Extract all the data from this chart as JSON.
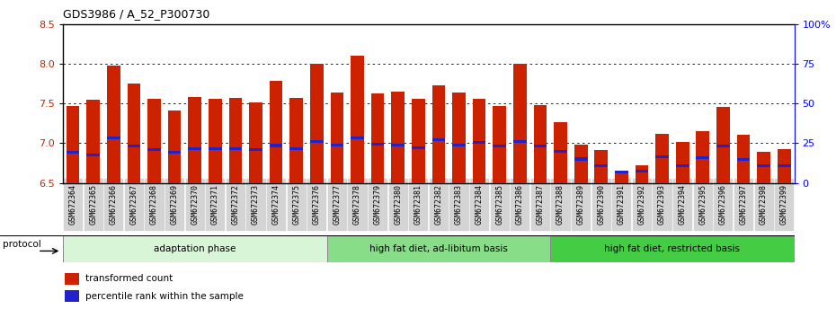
{
  "title": "GDS3986 / A_52_P300730",
  "samples": [
    "GSM672364",
    "GSM672365",
    "GSM672366",
    "GSM672367",
    "GSM672368",
    "GSM672369",
    "GSM672370",
    "GSM672371",
    "GSM672372",
    "GSM672373",
    "GSM672374",
    "GSM672375",
    "GSM672376",
    "GSM672377",
    "GSM672378",
    "GSM672379",
    "GSM672380",
    "GSM672381",
    "GSM672382",
    "GSM672383",
    "GSM672384",
    "GSM672385",
    "GSM672386",
    "GSM672387",
    "GSM672388",
    "GSM672389",
    "GSM672390",
    "GSM672391",
    "GSM672392",
    "GSM672393",
    "GSM672394",
    "GSM672395",
    "GSM672396",
    "GSM672397",
    "GSM672398",
    "GSM672399"
  ],
  "bar_values": [
    7.47,
    7.55,
    7.98,
    7.75,
    7.56,
    7.41,
    7.58,
    7.56,
    7.57,
    7.51,
    7.78,
    7.57,
    8.0,
    7.64,
    8.1,
    7.63,
    7.65,
    7.56,
    7.73,
    7.64,
    7.56,
    7.47,
    8.0,
    7.48,
    7.26,
    6.98,
    6.91,
    6.65,
    6.72,
    7.12,
    7.02,
    7.15,
    7.46,
    7.1,
    6.89,
    6.92
  ],
  "percentile_values": [
    6.88,
    6.85,
    7.07,
    6.96,
    6.92,
    6.88,
    6.93,
    6.93,
    6.93,
    6.92,
    6.97,
    6.93,
    7.02,
    6.98,
    7.07,
    6.99,
    6.98,
    6.94,
    7.04,
    6.98,
    7.01,
    6.96,
    7.02,
    6.96,
    6.9,
    6.8,
    6.72,
    6.64,
    6.65,
    6.83,
    6.72,
    6.82,
    6.96,
    6.79,
    6.72,
    6.72
  ],
  "ylim_left": [
    6.5,
    8.5
  ],
  "ylim_right": [
    0,
    100
  ],
  "yticks_left": [
    6.5,
    7.0,
    7.5,
    8.0,
    8.5
  ],
  "yticks_right": [
    0,
    25,
    50,
    75,
    100
  ],
  "ytick_labels_right": [
    "0",
    "25",
    "50",
    "75",
    "100%"
  ],
  "bar_color": "#cc2200",
  "percentile_color": "#2222cc",
  "groups": [
    {
      "label": "adaptation phase",
      "start": 0,
      "end": 13,
      "color": "#d8f5d8"
    },
    {
      "label": "high fat diet, ad-libitum basis",
      "start": 13,
      "end": 24,
      "color": "#88dd88"
    },
    {
      "label": "high fat diet, restricted basis",
      "start": 24,
      "end": 36,
      "color": "#44cc44"
    }
  ],
  "protocol_label": "protocol",
  "legend_items": [
    {
      "label": "transformed count",
      "color": "#cc2200"
    },
    {
      "label": "percentile rank within the sample",
      "color": "#2222cc"
    }
  ],
  "bar_width": 0.65,
  "pct_bar_height": 0.035,
  "grid_dotted_color": "#555555"
}
